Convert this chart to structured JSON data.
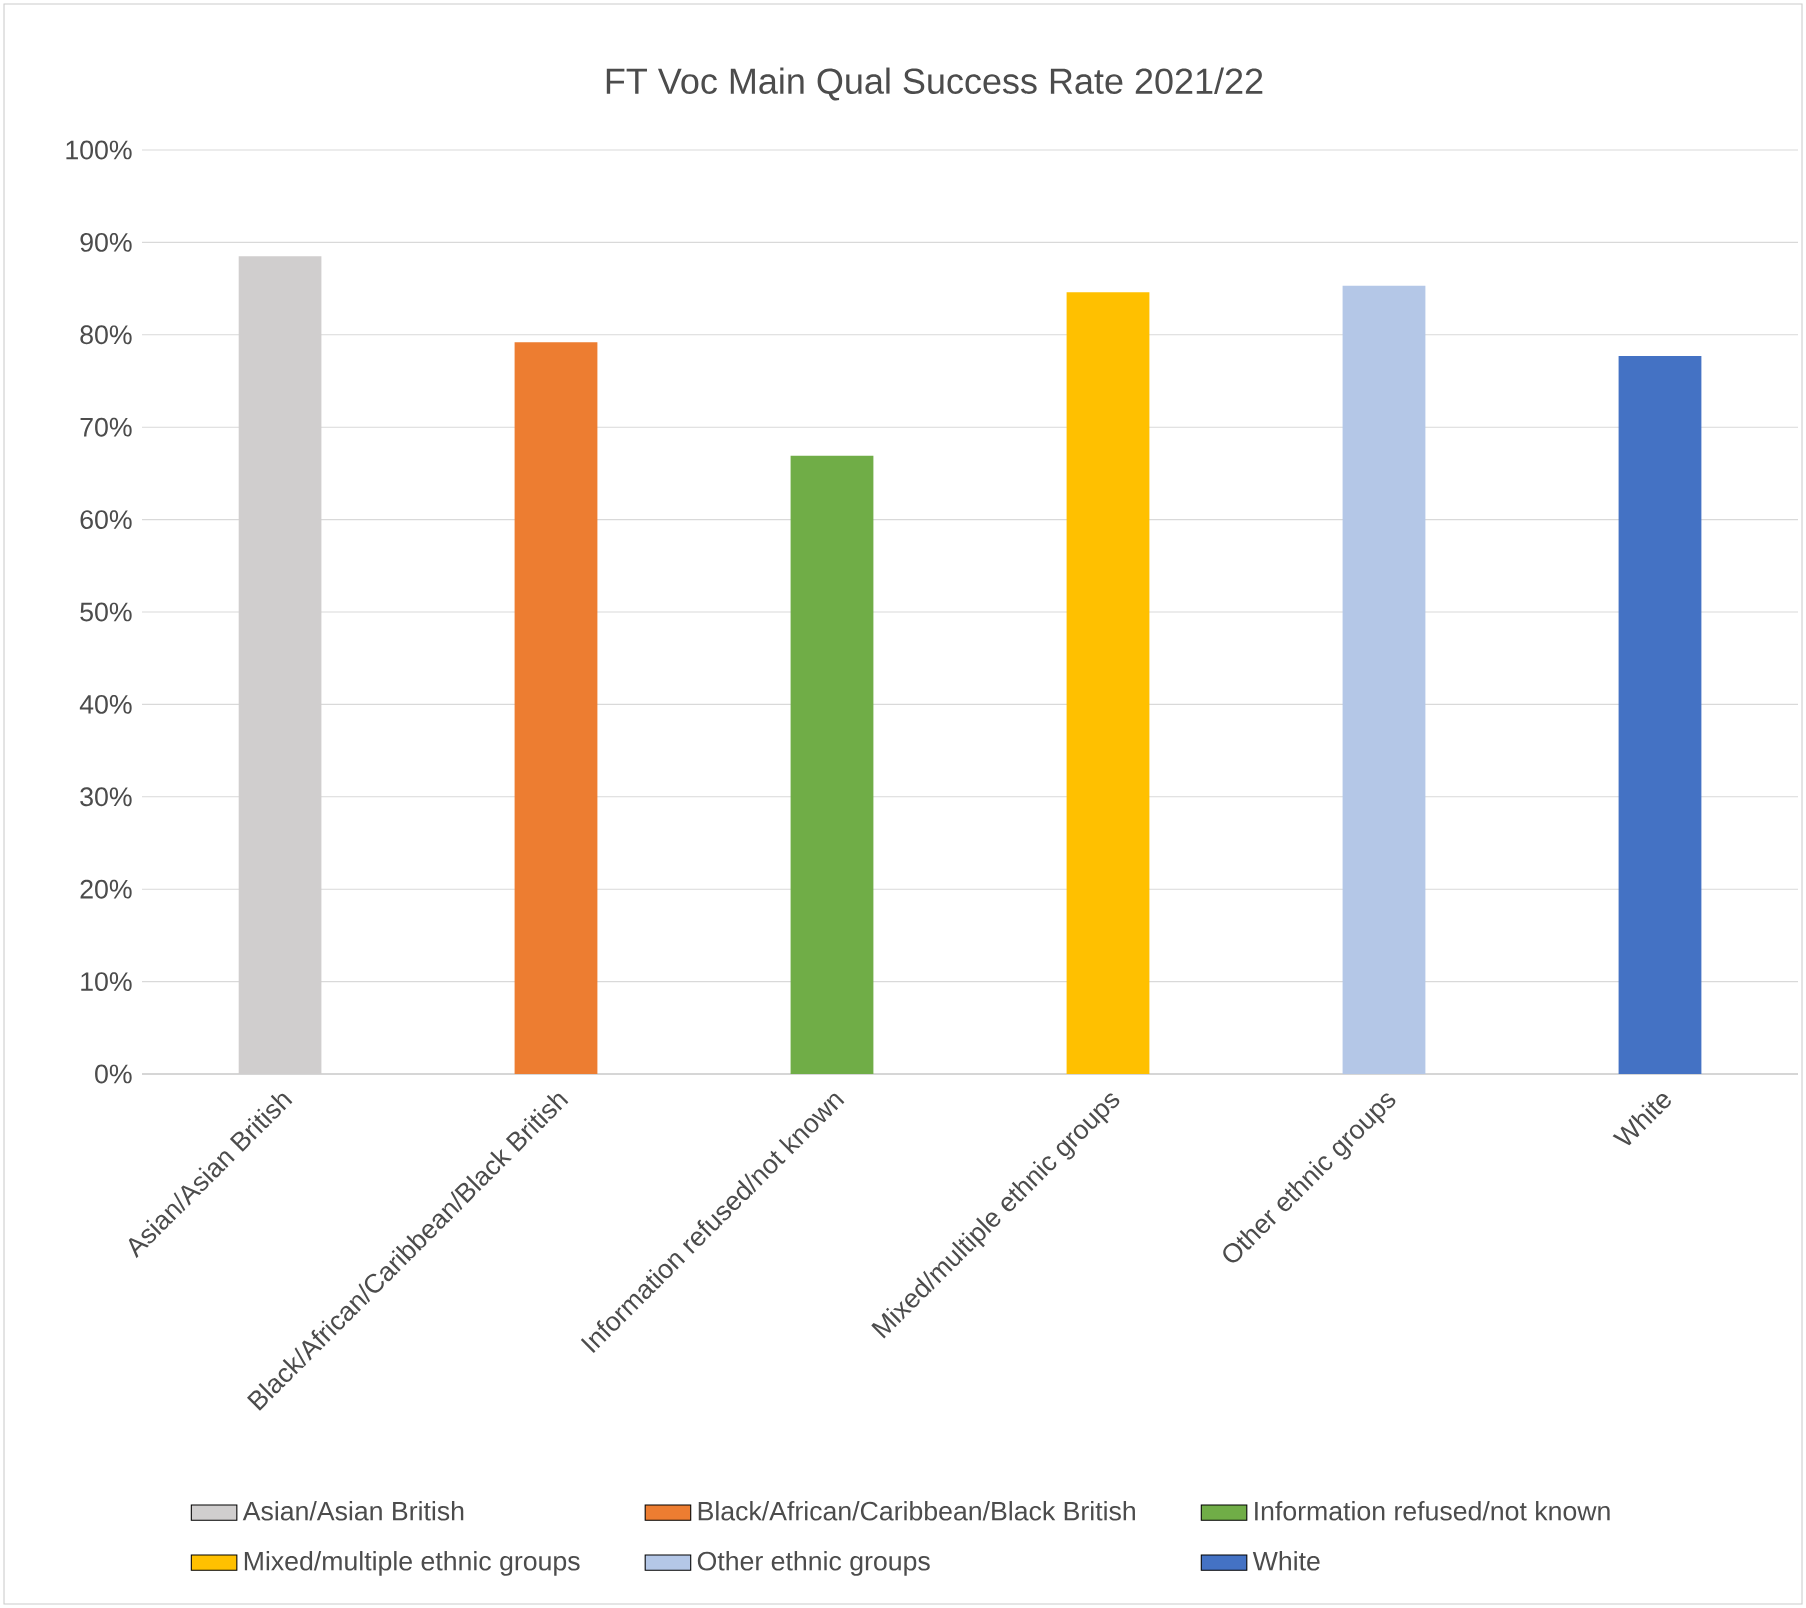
{
  "chart_data": {
    "type": "bar",
    "title": "FT Voc Main Qual Success Rate 2021/22",
    "categories": [
      "Asian/Asian British",
      "Black/African/Caribbean/Black British",
      "Information refused/not known",
      "Mixed/multiple ethnic groups",
      "Other ethnic groups",
      "White"
    ],
    "series": [
      {
        "name": "Asian/Asian British",
        "color": "#d0cece",
        "values": [
          88.5,
          null,
          null,
          null,
          null,
          null
        ]
      },
      {
        "name": "Black/African/Caribbean/Black British",
        "color": "#ed7d31",
        "values": [
          null,
          79.2,
          null,
          null,
          null,
          null
        ]
      },
      {
        "name": "Information refused/not known",
        "color": "#70ad47",
        "values": [
          null,
          null,
          66.9,
          null,
          null,
          null
        ]
      },
      {
        "name": "Mixed/multiple ethnic groups",
        "color": "#ffc000",
        "values": [
          null,
          null,
          null,
          84.6,
          null,
          null
        ]
      },
      {
        "name": "Other ethnic groups",
        "color": "#b4c7e7",
        "values": [
          null,
          null,
          null,
          null,
          85.3,
          null
        ]
      },
      {
        "name": "White",
        "color": "#4472c4",
        "values": [
          null,
          null,
          null,
          null,
          null,
          77.7
        ]
      }
    ],
    "ylim": [
      0,
      100
    ],
    "yticks": [
      {
        "value": 0,
        "label": "0%"
      },
      {
        "value": 10,
        "label": "10%"
      },
      {
        "value": 20,
        "label": "20%"
      },
      {
        "value": 30,
        "label": "30%"
      },
      {
        "value": 40,
        "label": "40%"
      },
      {
        "value": 50,
        "label": "50%"
      },
      {
        "value": 60,
        "label": "60%"
      },
      {
        "value": 70,
        "label": "70%"
      },
      {
        "value": 80,
        "label": "80%"
      },
      {
        "value": 90,
        "label": "90%"
      },
      {
        "value": 100,
        "label": "100%"
      }
    ],
    "grid": "y",
    "legend": "bottom"
  }
}
